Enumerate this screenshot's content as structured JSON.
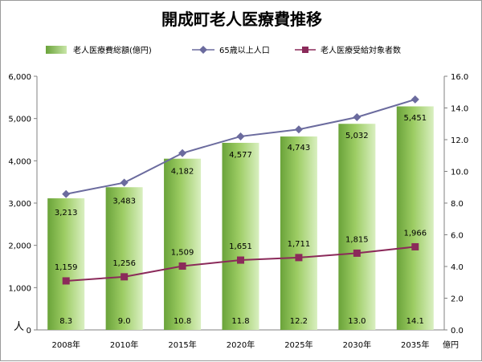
{
  "chart_data": {
    "type": "bar",
    "title": "開成町老人医療費推移",
    "categories": [
      "2008年",
      "2010年",
      "2015年",
      "2020年",
      "2025年",
      "2030年",
      "2035年"
    ],
    "series": [
      {
        "name": "老人医療費総額(億円)",
        "kind": "bar",
        "axis": "right",
        "values": [
          8.3,
          9.0,
          10.8,
          11.8,
          12.2,
          13.0,
          14.1
        ],
        "labels": [
          "8.3",
          "9.0",
          "10.8",
          "11.8",
          "12.2",
          "13.0",
          "14.1"
        ],
        "color": "#7aad3e"
      },
      {
        "name": "65歳以上人口",
        "kind": "line",
        "axis": "left",
        "marker": "diamond",
        "values": [
          3213,
          3483,
          4182,
          4577,
          4743,
          5032,
          5451
        ],
        "labels": [
          "3,213",
          "3,483",
          "4,182",
          "4,577",
          "4,743",
          "5,032",
          "5,451"
        ],
        "color": "#6b6b9e"
      },
      {
        "name": "老人医療受給対象者数",
        "kind": "line",
        "axis": "left",
        "marker": "square",
        "values": [
          1159,
          1256,
          1509,
          1651,
          1711,
          1815,
          1966
        ],
        "labels": [
          "1,159",
          "1,256",
          "1,509",
          "1,651",
          "1,711",
          "1,815",
          "1,966"
        ],
        "color": "#8b2a5a"
      }
    ],
    "y_left": {
      "label": "人",
      "ylim": [
        0,
        6000
      ],
      "ticks": [
        "0",
        "1,000",
        "2,000",
        "3,000",
        "4,000",
        "5,000",
        "6,000"
      ]
    },
    "y_right": {
      "label": "億円",
      "ylim": [
        0,
        16
      ],
      "ticks": [
        "0.0",
        "2.0",
        "4.0",
        "6.0",
        "8.0",
        "10.0",
        "12.0",
        "14.0",
        "16.0"
      ]
    },
    "legend_position": "top",
    "grid": false
  }
}
